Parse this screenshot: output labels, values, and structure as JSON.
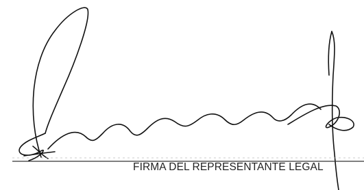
{
  "signature_block": {
    "caption": "FIRMA DEL REPRESENTANTE LEGAL"
  }
}
